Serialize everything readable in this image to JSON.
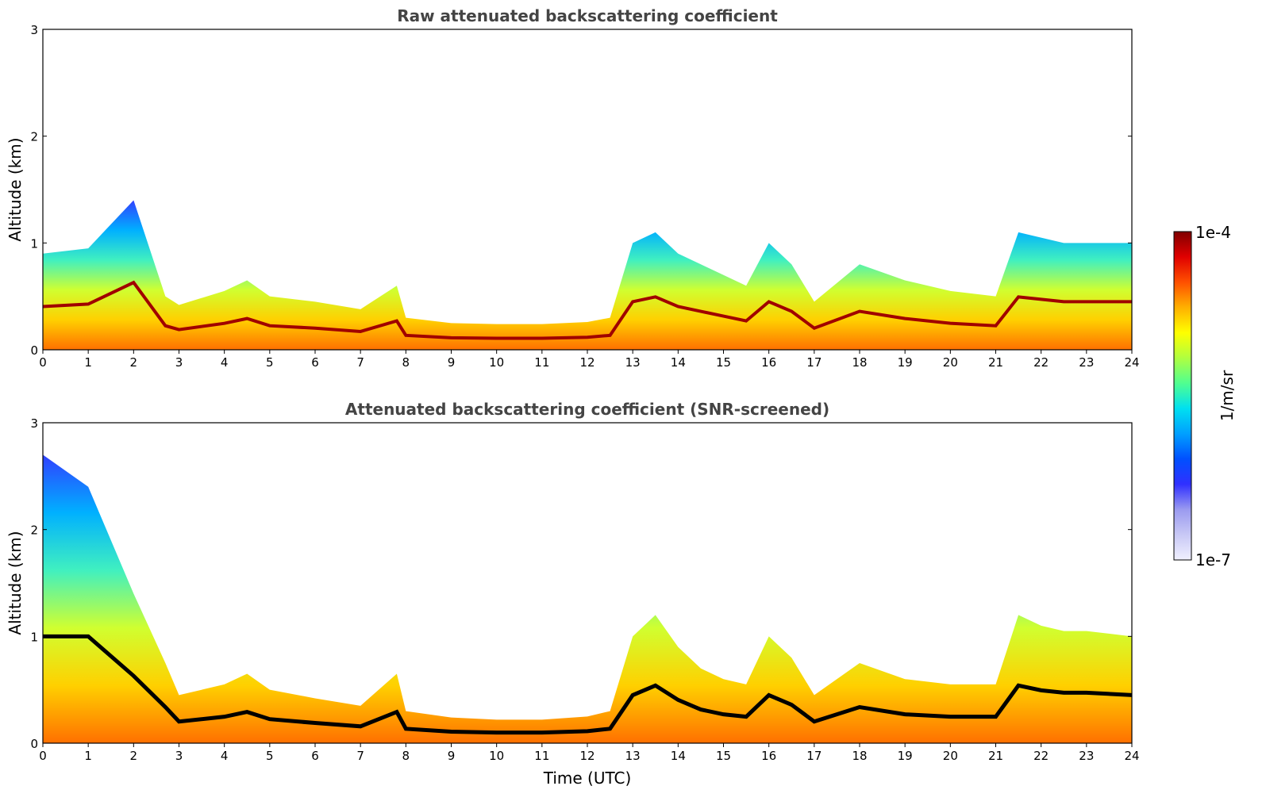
{
  "chart_data": [
    {
      "type": "heatmap",
      "title": "Raw attenuated backscattering coefficient",
      "xlabel": "",
      "ylabel": "Altitude (km)",
      "xlim": [
        0,
        24
      ],
      "ylim": [
        0,
        3
      ],
      "xticks": [
        "0",
        "1",
        "2",
        "3",
        "4",
        "5",
        "6",
        "7",
        "8",
        "9",
        "10",
        "11",
        "12",
        "13",
        "14",
        "15",
        "16",
        "17",
        "18",
        "19",
        "20",
        "21",
        "22",
        "23",
        "24"
      ],
      "yticks": [
        "0",
        "1",
        "2",
        "3"
      ],
      "boundary_layer_top_km": {
        "hours": [
          0,
          1,
          2,
          2.7,
          3,
          4,
          4.5,
          5,
          6,
          7,
          7.8,
          8,
          9,
          10,
          11,
          12,
          12.5,
          13,
          13.5,
          14,
          14.5,
          15,
          15.5,
          16,
          16.5,
          17,
          18,
          19,
          20,
          21,
          21.5,
          22,
          22.5,
          23,
          24
        ],
        "values": [
          0.9,
          0.95,
          1.4,
          0.5,
          0.42,
          0.55,
          0.65,
          0.5,
          0.45,
          0.38,
          0.6,
          0.3,
          0.25,
          0.24,
          0.24,
          0.26,
          0.3,
          1.0,
          1.1,
          0.9,
          0.8,
          0.7,
          0.6,
          1.0,
          0.8,
          0.45,
          0.8,
          0.65,
          0.55,
          0.5,
          1.1,
          1.05,
          1.0,
          1.0,
          1.0
        ]
      }
    },
    {
      "type": "heatmap",
      "title": "Attenuated backscattering coefficient (SNR-screened)",
      "xlabel": "Time (UTC)",
      "ylabel": "Altitude (km)",
      "xlim": [
        0,
        24
      ],
      "ylim": [
        0,
        3
      ],
      "xticks": [
        "0",
        "1",
        "2",
        "3",
        "4",
        "5",
        "6",
        "7",
        "8",
        "9",
        "10",
        "11",
        "12",
        "13",
        "14",
        "15",
        "16",
        "17",
        "18",
        "19",
        "20",
        "21",
        "22",
        "23",
        "24"
      ],
      "yticks": [
        "0",
        "1",
        "2",
        "3"
      ],
      "boundary_layer_top_km": {
        "hours": [
          0,
          1,
          2,
          2.7,
          3,
          4,
          4.5,
          5,
          6,
          7,
          7.8,
          8,
          9,
          10,
          11,
          12,
          12.5,
          13,
          13.5,
          14,
          14.5,
          15,
          15.5,
          16,
          16.5,
          17,
          18,
          19,
          20,
          21,
          21.5,
          22,
          22.5,
          23,
          24
        ],
        "values": [
          2.7,
          2.4,
          1.4,
          0.75,
          0.45,
          0.55,
          0.65,
          0.5,
          0.42,
          0.35,
          0.65,
          0.3,
          0.24,
          0.22,
          0.22,
          0.25,
          0.3,
          1.0,
          1.2,
          0.9,
          0.7,
          0.6,
          0.55,
          1.0,
          0.8,
          0.45,
          0.75,
          0.6,
          0.55,
          0.55,
          1.2,
          1.1,
          1.05,
          1.05,
          1.0
        ]
      }
    }
  ],
  "colorbar": {
    "label": "1/m/sr",
    "max_label": "1e-4",
    "min_label": "1e-7",
    "colors": [
      "#f0f0ff",
      "#c8c8f5",
      "#9a9af0",
      "#3030ff",
      "#0050ff",
      "#00a0ff",
      "#00e0f0",
      "#50ff90",
      "#b0ff40",
      "#ffff00",
      "#ffb000",
      "#ff5000",
      "#e00000",
      "#800000"
    ]
  }
}
